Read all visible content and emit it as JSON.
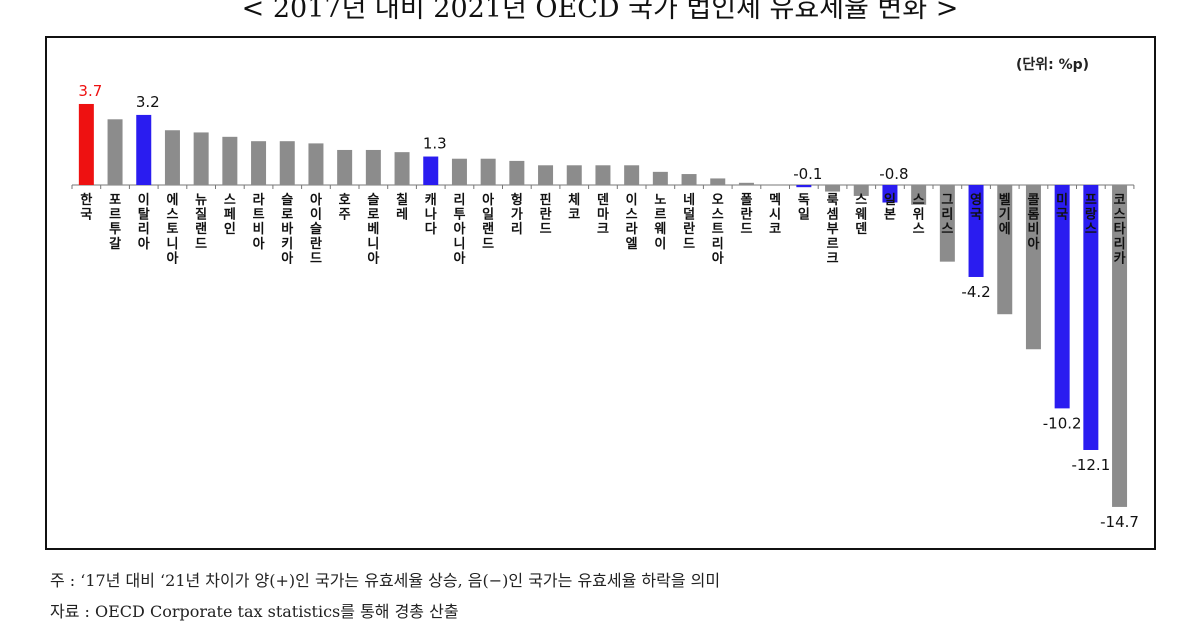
{
  "title": "< 2017년 대비 2021년 OECD 국가 법인세 유효세율 변화 >",
  "unit": "(단위: %p)",
  "notes": [
    "주 : ‘17년 대비 ‘21년 차이가 양(+)인 국가는 유효세율 상승, 음(−)인 국가는 유효세율 하락을 의미",
    "자료 : OECD Corporate tax statistics를 통해 경총 산출"
  ],
  "colors": {
    "highlight_korea": "#ee1111",
    "highlight": "#2a1cf0",
    "other": "#8c8c8c"
  },
  "chart_data": {
    "type": "bar",
    "title": "< 2017년 대비 2021년 OECD 국가 법인세 유효세율 변화 >",
    "unit": "%p",
    "categories": [
      "한국",
      "포르투갈",
      "이탈리아",
      "에스토니아",
      "뉴질랜드",
      "스페인",
      "라트비아",
      "슬로바키아",
      "아이슬란드",
      "호주",
      "슬로베니아",
      "칠레",
      "캐나다",
      "리투아니아",
      "아일랜드",
      "헝가리",
      "핀란드",
      "체코",
      "덴마크",
      "이스라엘",
      "노르웨이",
      "네덜란드",
      "오스트리아",
      "폴란드",
      "멕시코",
      "독일",
      "룩셈부르크",
      "스웨덴",
      "일본",
      "스위스",
      "그리스",
      "영국",
      "벨기에",
      "콜롬비아",
      "미국",
      "프랑스",
      "코스타리카"
    ],
    "values": [
      3.7,
      3.0,
      3.2,
      2.5,
      2.4,
      2.2,
      2.0,
      2.0,
      1.9,
      1.6,
      1.6,
      1.5,
      1.3,
      1.2,
      1.2,
      1.1,
      0.9,
      0.9,
      0.9,
      0.9,
      0.6,
      0.5,
      0.3,
      0.1,
      0.0,
      -0.1,
      -0.3,
      -0.5,
      -0.8,
      -0.9,
      -3.5,
      -4.2,
      -5.9,
      -7.5,
      -10.2,
      -12.1,
      -14.7
    ],
    "data_labels": [
      {
        "category": "한국",
        "label": "3.7"
      },
      {
        "category": "이탈리아",
        "label": "3.2"
      },
      {
        "category": "캐나다",
        "label": "1.3"
      },
      {
        "category": "독일",
        "label": "-0.1"
      },
      {
        "category": "일본",
        "label": "-0.8"
      },
      {
        "category": "영국",
        "label": "-4.2"
      },
      {
        "category": "미국",
        "label": "-10.2"
      },
      {
        "category": "프랑스",
        "label": "-12.1"
      },
      {
        "category": "코스타리카",
        "label": "-14.7"
      }
    ],
    "highlighted": [
      "한국",
      "이탈리아",
      "캐나다",
      "독일",
      "일본",
      "영국",
      "미국",
      "프랑스"
    ],
    "ylim": [
      -15,
      4
    ],
    "grid": false,
    "legend": "none"
  }
}
